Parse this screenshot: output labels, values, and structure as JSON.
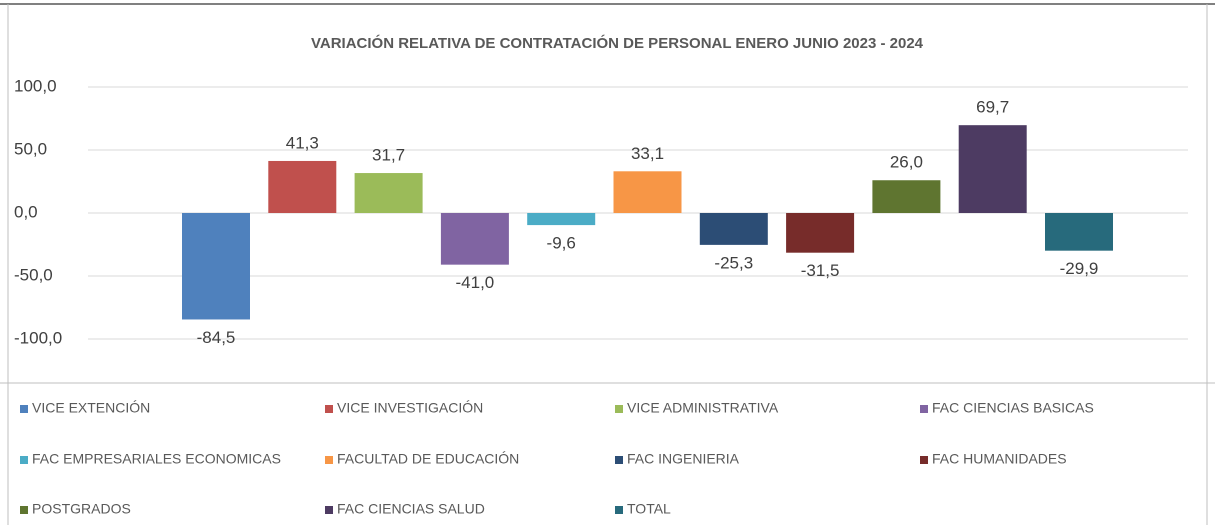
{
  "chart_data": {
    "type": "bar",
    "title": "VARIACIÓN RELATIVA DE CONTRATACIÓN DE PERSONAL ENERO JUNIO 2023 - 2024",
    "ylim": [
      -100,
      100
    ],
    "yticks": [
      {
        "value": 100,
        "label": "100,0"
      },
      {
        "value": 50,
        "label": "50,0"
      },
      {
        "value": 0,
        "label": "0,0"
      },
      {
        "value": -50,
        "label": "-50,0"
      },
      {
        "value": -100,
        "label": "-100,0"
      }
    ],
    "grid": true,
    "legend": "bottom",
    "series": [
      {
        "name": "VICE EXTENCIÓN",
        "color": "#4f81bd",
        "values": [
          -84.5
        ],
        "value_labels": [
          "-84,5"
        ]
      },
      {
        "name": "VICE INVESTIGACIÓN",
        "color": "#c0504d",
        "values": [
          41.3
        ],
        "value_labels": [
          "41,3"
        ]
      },
      {
        "name": "VICE ADMINISTRATIVA",
        "color": "#9bbb59",
        "values": [
          31.7
        ],
        "value_labels": [
          "31,7"
        ]
      },
      {
        "name": "FAC CIENCIAS BASICAS",
        "color": "#8064a2",
        "values": [
          -41.0
        ],
        "value_labels": [
          "-41,0"
        ]
      },
      {
        "name": "FAC EMPRESARIALES ECONOMICAS",
        "color": "#4bacc6",
        "values": [
          -9.6
        ],
        "value_labels": [
          "-9,6"
        ]
      },
      {
        "name": "FACULTAD DE EDUCACIÓN",
        "color": "#f79646",
        "values": [
          33.1
        ],
        "value_labels": [
          "33,1"
        ]
      },
      {
        "name": "FAC INGENIERIA",
        "color": "#2c4d75",
        "values": [
          -25.3
        ],
        "value_labels": [
          "-25,3"
        ]
      },
      {
        "name": "FAC HUMANIDADES",
        "color": "#772c2a",
        "values": [
          -31.5
        ],
        "value_labels": [
          "-31,5"
        ]
      },
      {
        "name": "POSTGRADOS",
        "color": "#5f7530",
        "values": [
          26.0
        ],
        "value_labels": [
          "26,0"
        ]
      },
      {
        "name": "FAC CIENCIAS SALUD",
        "color": "#4d3b62",
        "values": [
          69.7
        ],
        "value_labels": [
          "69,7"
        ]
      },
      {
        "name": "TOTAL",
        "color": "#276a7c",
        "values": [
          -29.9
        ],
        "value_labels": [
          "-29,9"
        ]
      }
    ]
  }
}
